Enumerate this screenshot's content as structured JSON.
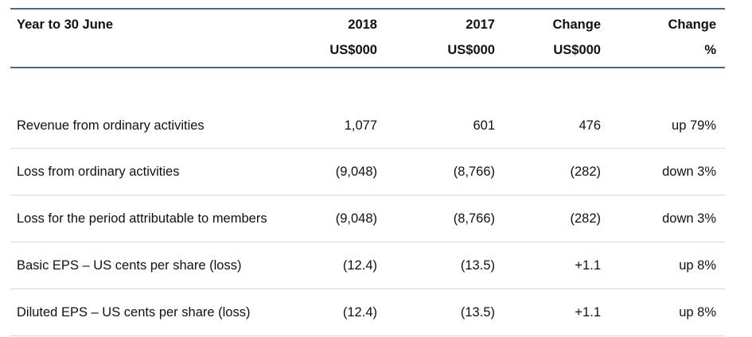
{
  "header": {
    "period": "Year to 30 June",
    "col_2018": "2018",
    "col_2017": "2017",
    "col_change": "Change",
    "col_change_pct": "Change",
    "unit_2018": "US$000",
    "unit_2017": "US$000",
    "unit_change": "US$000",
    "unit_change_pct": "%"
  },
  "rows": [
    {
      "label": "Revenue from ordinary activities",
      "v2018": "1,077",
      "v2017": "601",
      "change": "476",
      "change_pct": "up 79%"
    },
    {
      "label": "Loss from ordinary activities",
      "v2018": "(9,048)",
      "v2017": "(8,766)",
      "change": "(282)",
      "change_pct": "down 3%"
    },
    {
      "label": "Loss for the period attributable to members",
      "v2018": "(9,048)",
      "v2017": "(8,766)",
      "change": "(282)",
      "change_pct": "down 3%"
    },
    {
      "label": "Basic EPS – US cents per share (loss)",
      "v2018": "(12.4)",
      "v2017": "(13.5)",
      "change": "+1.1",
      "change_pct": "up 8%"
    },
    {
      "label": "Diluted EPS – US cents per share (loss)",
      "v2018": "(12.4)",
      "v2017": "(13.5)",
      "change": "+1.1",
      "change_pct": "up 8%"
    }
  ],
  "colors": {
    "rule": "#4b6b87",
    "row_divider": "#d9d9d9"
  }
}
